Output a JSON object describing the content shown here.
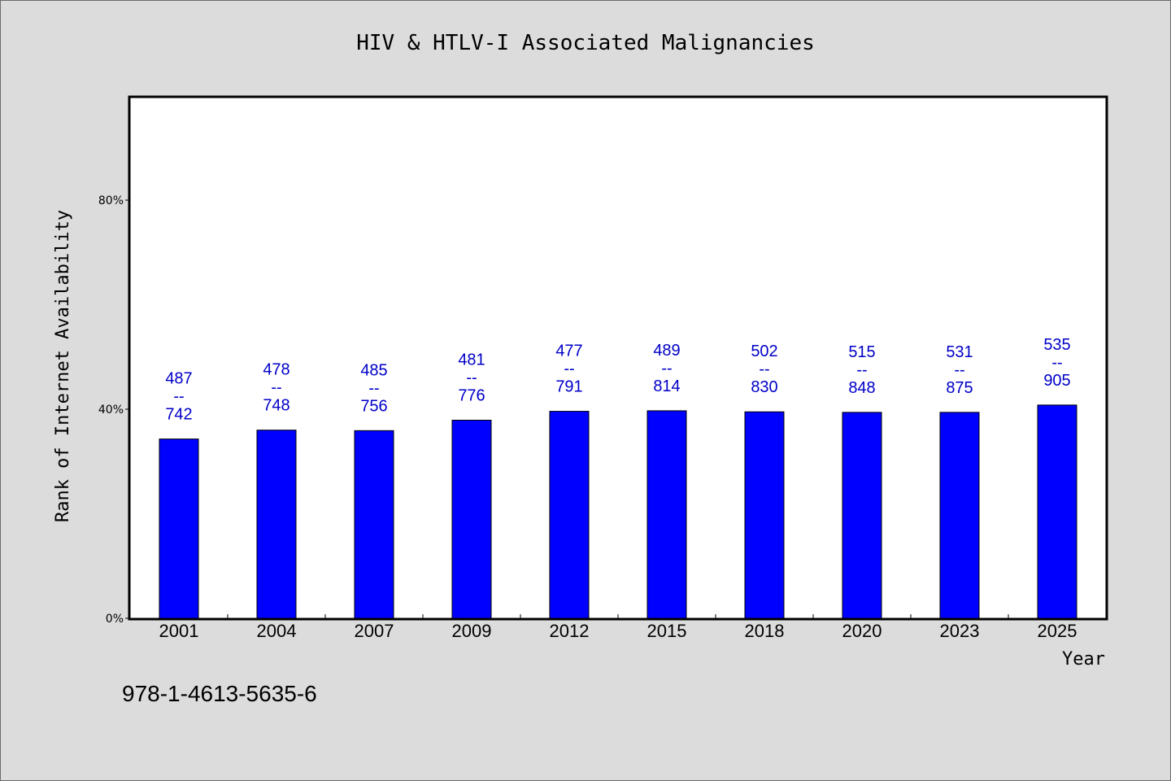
{
  "chart_data": {
    "type": "bar",
    "title": "HIV & HTLV-I Associated Malignancies",
    "xlabel": "Year",
    "ylabel": "Rank of Internet Availability",
    "categories": [
      "2001",
      "2004",
      "2007",
      "2009",
      "2012",
      "2015",
      "2018",
      "2020",
      "2023",
      "2025"
    ],
    "values": [
      34.3,
      36.0,
      35.9,
      37.9,
      39.6,
      39.7,
      39.5,
      39.4,
      39.4,
      40.8
    ],
    "data_labels": [
      [
        "487",
        "--",
        "742"
      ],
      [
        "478",
        "--",
        "748"
      ],
      [
        "485",
        "--",
        "756"
      ],
      [
        "481",
        "--",
        "776"
      ],
      [
        "477",
        "--",
        "791"
      ],
      [
        "489",
        "--",
        "814"
      ],
      [
        "502",
        "--",
        "830"
      ],
      [
        "515",
        "--",
        "848"
      ],
      [
        "531",
        "--",
        "875"
      ],
      [
        "535",
        "--",
        "905"
      ]
    ],
    "yticks": [
      0,
      40,
      80
    ],
    "ytick_labels": [
      "0%",
      "40%",
      "80%"
    ],
    "ylim": [
      0,
      100
    ],
    "grid": false,
    "bar_color": "#0000ff",
    "label_color": "#0000c8",
    "background": "#dcdcdc",
    "plot_background": "#ffffff"
  },
  "footnote": "978-1-4613-5635-6"
}
